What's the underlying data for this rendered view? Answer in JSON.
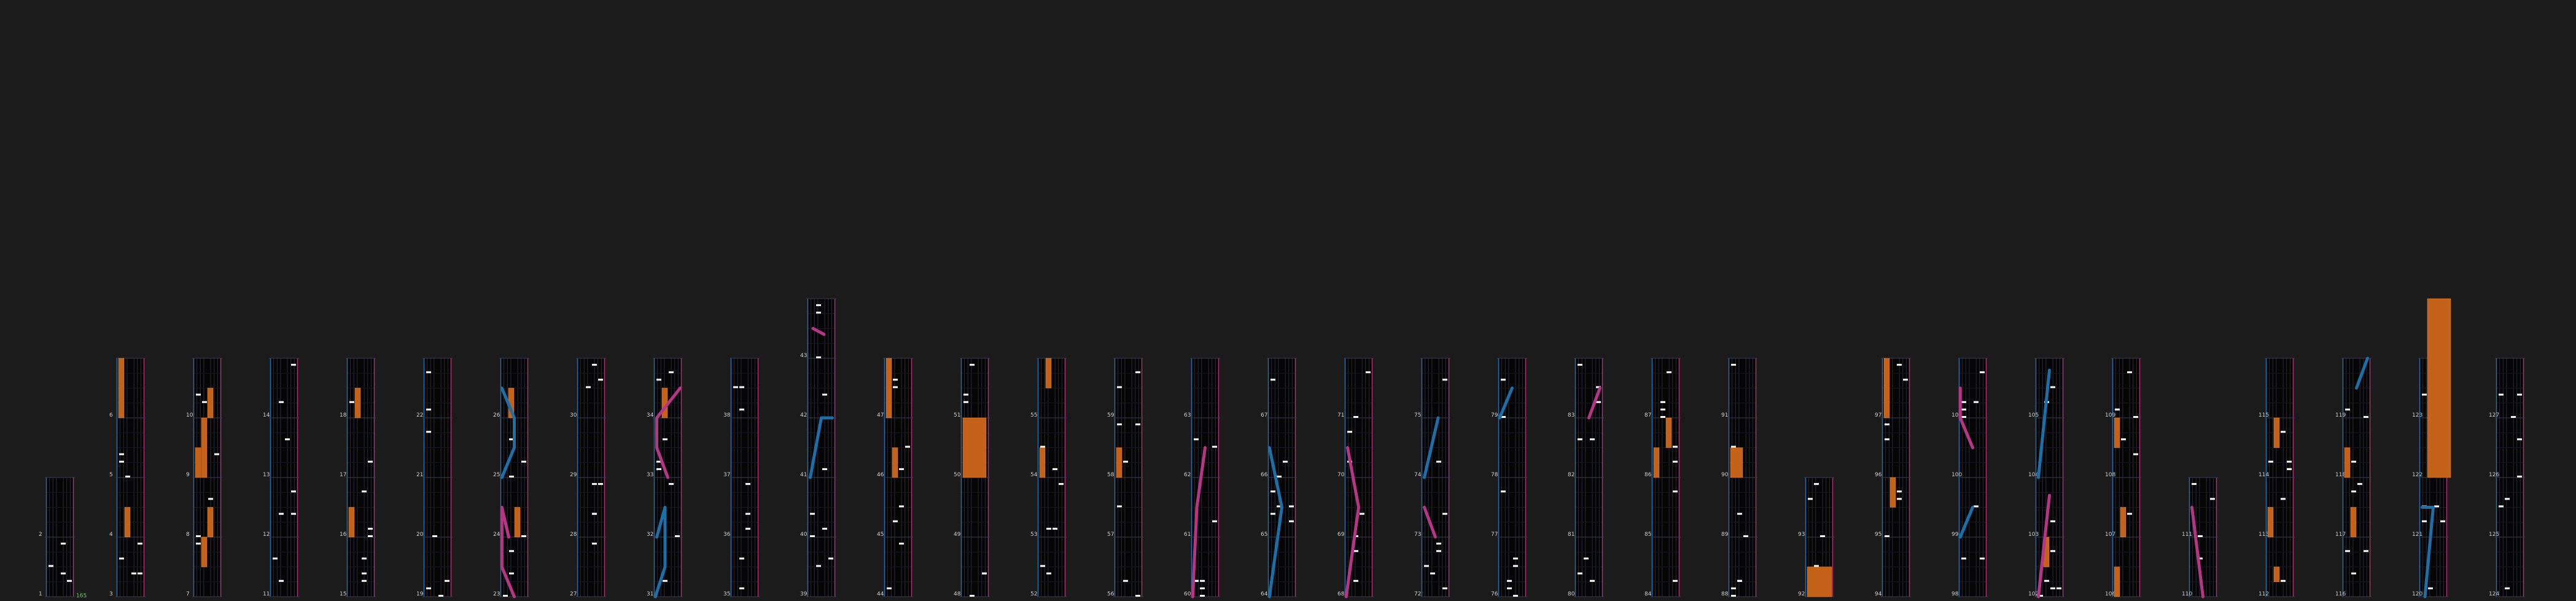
{
  "colors": {
    "background": "#1b1b1b",
    "lane_bg": "#050505",
    "grid": "#2a2a36",
    "measure_line": "#3a3a50",
    "left_edge": "#1e6fb0",
    "right_edge": "#b0306f",
    "note": "#ffffff",
    "long_note": "#c4621a",
    "laser_left": "#1c6fa8",
    "laser_right": "#b83585",
    "bpm_text": "#5cd65c"
  },
  "bpm_label": "165",
  "columns": [
    {
      "start": 1,
      "measures": 2
    },
    {
      "start": 3,
      "measures": 4
    },
    {
      "start": 7,
      "measures": 4
    },
    {
      "start": 11,
      "measures": 4
    },
    {
      "start": 15,
      "measures": 4
    },
    {
      "start": 19,
      "measures": 4
    },
    {
      "start": 23,
      "measures": 4
    },
    {
      "start": 27,
      "measures": 4
    },
    {
      "start": 31,
      "measures": 4
    },
    {
      "start": 35,
      "measures": 4
    },
    {
      "start": 39,
      "measures": 5
    },
    {
      "start": 44,
      "measures": 4
    },
    {
      "start": 48,
      "measures": 4
    },
    {
      "start": 52,
      "measures": 4
    },
    {
      "start": 56,
      "measures": 4
    },
    {
      "start": 60,
      "measures": 4
    },
    {
      "start": 64,
      "measures": 4
    },
    {
      "start": 68,
      "measures": 4
    },
    {
      "start": 72,
      "measures": 4
    },
    {
      "start": 76,
      "measures": 4
    },
    {
      "start": 80,
      "measures": 4
    },
    {
      "start": 84,
      "measures": 4
    },
    {
      "start": 88,
      "measures": 4
    },
    {
      "start": 92,
      "measures": 2
    },
    {
      "start": 94,
      "measures": 4
    },
    {
      "start": 98,
      "measures": 4
    },
    {
      "start": 102,
      "measures": 4
    },
    {
      "start": 106,
      "measures": 4
    },
    {
      "start": 110,
      "measures": 2
    },
    {
      "start": 112,
      "measures": 4
    },
    {
      "start": 116,
      "measures": 4
    },
    {
      "start": 120,
      "measures": 4
    },
    {
      "start": 124,
      "measures": 4
    }
  ]
}
